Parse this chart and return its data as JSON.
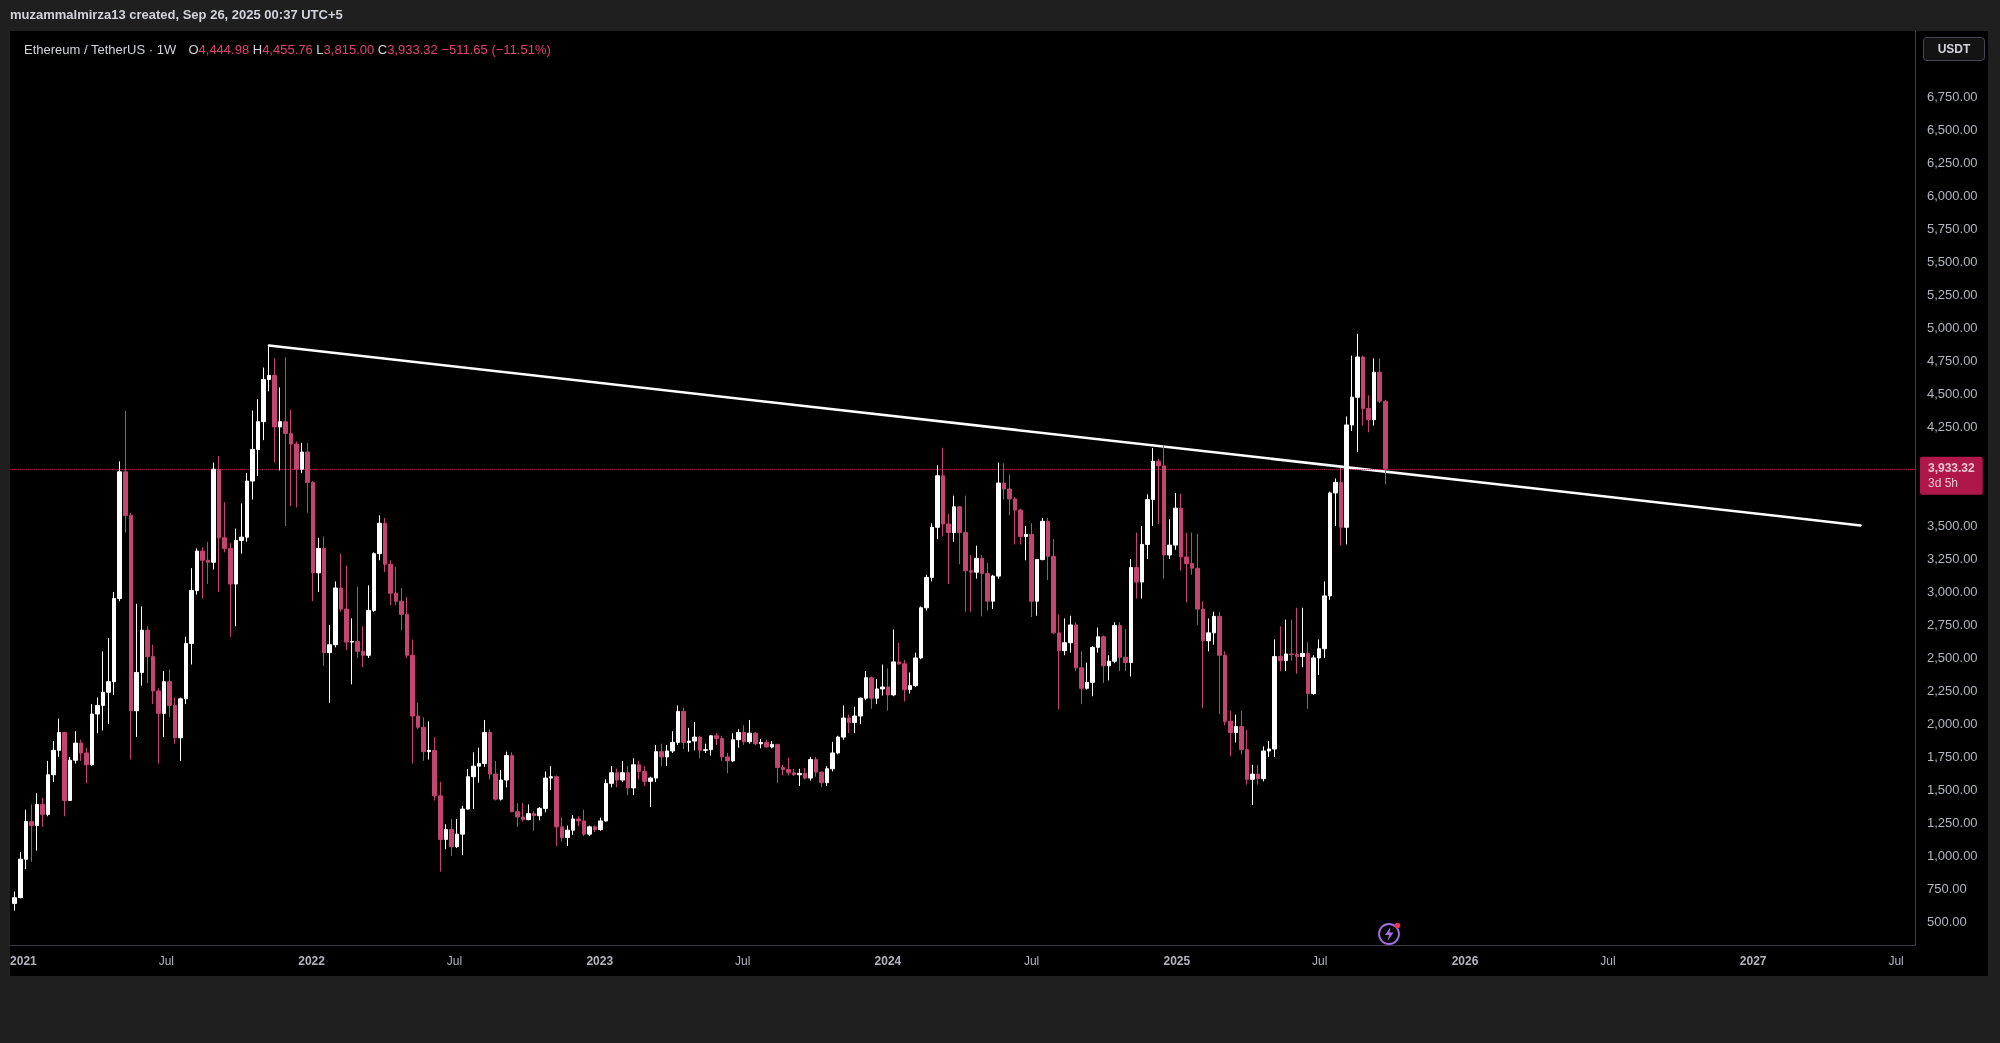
{
  "chart_data": {
    "type": "candlestick",
    "title": "Ethereum / TetherUS · 1W",
    "subtitle": "O4,444.98 H4,455.76 L3,815.00 C3,933.32 −511.65 (−11.51%)",
    "x": [
      "2020-12-21",
      "2020-12-28",
      "2021-01-04",
      "2021-01-11",
      "2021-01-18",
      "2021-01-25",
      "2021-02-01",
      "2021-02-08",
      "2021-02-15",
      "2021-02-22",
      "2021-03-01",
      "2021-03-08",
      "2021-03-15",
      "2021-03-22",
      "2021-03-29",
      "2021-04-05",
      "2021-04-12",
      "2021-04-19",
      "2021-04-26",
      "2021-05-03",
      "2021-05-10",
      "2021-05-17",
      "2021-05-24",
      "2021-05-31",
      "2021-06-07",
      "2021-06-14",
      "2021-06-21",
      "2021-06-28",
      "2021-07-05",
      "2021-07-12",
      "2021-07-19",
      "2021-07-26",
      "2021-08-02",
      "2021-08-09",
      "2021-08-16",
      "2021-08-23",
      "2021-08-30",
      "2021-09-06",
      "2021-09-13",
      "2021-09-20",
      "2021-09-27",
      "2021-10-04",
      "2021-10-11",
      "2021-10-18",
      "2021-10-25",
      "2021-11-01",
      "2021-11-08",
      "2021-11-15",
      "2021-11-22",
      "2021-11-29",
      "2021-12-06",
      "2021-12-13",
      "2021-12-20",
      "2021-12-27",
      "2022-01-03",
      "2022-01-10",
      "2022-01-17",
      "2022-01-24",
      "2022-01-31",
      "2022-02-07",
      "2022-02-14",
      "2022-02-21",
      "2022-02-28",
      "2022-03-07",
      "2022-03-14",
      "2022-03-21",
      "2022-03-28",
      "2022-04-04",
      "2022-04-11",
      "2022-04-18",
      "2022-04-25",
      "2022-05-02",
      "2022-05-09",
      "2022-05-16",
      "2022-05-23",
      "2022-05-30",
      "2022-06-06",
      "2022-06-13",
      "2022-06-20",
      "2022-06-27",
      "2022-07-04",
      "2022-07-11",
      "2022-07-18",
      "2022-07-25",
      "2022-08-01",
      "2022-08-08",
      "2022-08-15",
      "2022-08-22",
      "2022-08-29",
      "2022-09-05",
      "2022-09-12",
      "2022-09-19",
      "2022-09-26",
      "2022-10-03",
      "2022-10-10",
      "2022-10-17",
      "2022-10-24",
      "2022-10-31",
      "2022-11-07",
      "2022-11-14",
      "2022-11-21",
      "2022-11-28",
      "2022-12-05",
      "2022-12-12",
      "2022-12-19",
      "2022-12-26",
      "2023-01-02",
      "2023-01-09",
      "2023-01-16",
      "2023-01-23",
      "2023-01-30",
      "2023-02-06",
      "2023-02-13",
      "2023-02-20",
      "2023-02-27",
      "2023-03-06",
      "2023-03-13",
      "2023-03-20",
      "2023-03-27",
      "2023-04-03",
      "2023-04-10",
      "2023-04-17",
      "2023-04-24",
      "2023-05-01",
      "2023-05-08",
      "2023-05-15",
      "2023-05-22",
      "2023-05-29",
      "2023-06-05",
      "2023-06-12",
      "2023-06-19",
      "2023-06-26",
      "2023-07-03",
      "2023-07-10",
      "2023-07-17",
      "2023-07-24",
      "2023-07-31",
      "2023-08-07",
      "2023-08-14",
      "2023-08-21",
      "2023-08-28",
      "2023-09-04",
      "2023-09-11",
      "2023-09-18",
      "2023-09-25",
      "2023-10-02",
      "2023-10-09",
      "2023-10-16",
      "2023-10-23",
      "2023-10-30",
      "2023-11-06",
      "2023-11-13",
      "2023-11-20",
      "2023-11-27",
      "2023-12-04",
      "2023-12-11",
      "2023-12-18",
      "2023-12-25",
      "2024-01-01",
      "2024-01-08",
      "2024-01-15",
      "2024-01-22",
      "2024-01-29",
      "2024-02-05",
      "2024-02-12",
      "2024-02-19",
      "2024-02-26",
      "2024-03-04",
      "2024-03-11",
      "2024-03-18",
      "2024-03-25",
      "2024-04-01",
      "2024-04-08",
      "2024-04-15",
      "2024-04-22",
      "2024-04-29",
      "2024-05-06",
      "2024-05-13",
      "2024-05-20",
      "2024-05-27",
      "2024-06-03",
      "2024-06-10",
      "2024-06-17",
      "2024-06-24",
      "2024-07-01",
      "2024-07-08",
      "2024-07-15",
      "2024-07-22",
      "2024-07-29",
      "2024-08-05",
      "2024-08-12",
      "2024-08-19",
      "2024-08-26",
      "2024-09-02",
      "2024-09-09",
      "2024-09-16",
      "2024-09-23",
      "2024-09-30",
      "2024-10-07",
      "2024-10-14",
      "2024-10-21",
      "2024-10-28",
      "2024-11-04",
      "2024-11-11",
      "2024-11-18",
      "2024-11-25",
      "2024-12-02",
      "2024-12-09",
      "2024-12-16",
      "2024-12-23",
      "2024-12-30",
      "2025-01-06",
      "2025-01-13",
      "2025-01-20",
      "2025-01-27",
      "2025-02-03",
      "2025-02-10",
      "2025-02-17",
      "2025-02-24",
      "2025-03-03",
      "2025-03-10",
      "2025-03-17",
      "2025-03-24",
      "2025-03-31",
      "2025-04-07",
      "2025-04-14",
      "2025-04-21",
      "2025-04-28",
      "2025-05-05",
      "2025-05-12",
      "2025-05-19",
      "2025-05-26",
      "2025-06-02",
      "2025-06-09",
      "2025-06-16",
      "2025-06-23",
      "2025-06-30",
      "2025-07-07",
      "2025-07-14",
      "2025-07-21",
      "2025-07-28",
      "2025-08-04",
      "2025-08-11",
      "2025-08-18",
      "2025-08-25",
      "2025-09-01",
      "2025-09-08",
      "2025-09-15",
      "2025-09-22"
    ],
    "ohlc": [
      [
        640,
        730,
        585,
        683
      ],
      [
        683,
        1030,
        680,
        975
      ],
      [
        975,
        1350,
        900,
        1260
      ],
      [
        1260,
        1390,
        955,
        1230
      ],
      [
        1230,
        1475,
        1040,
        1390
      ],
      [
        1390,
        1440,
        1220,
        1315
      ],
      [
        1315,
        1720,
        1300,
        1615
      ],
      [
        1615,
        1870,
        1560,
        1800
      ],
      [
        1800,
        2040,
        1750,
        1935
      ],
      [
        1935,
        1940,
        1300,
        1420
      ],
      [
        1420,
        1750,
        1420,
        1725
      ],
      [
        1725,
        1945,
        1700,
        1855
      ],
      [
        1855,
        1880,
        1720,
        1780
      ],
      [
        1780,
        1820,
        1550,
        1690
      ],
      [
        1690,
        2150,
        1680,
        2075
      ],
      [
        2075,
        2200,
        1930,
        2140
      ],
      [
        2140,
        2550,
        1950,
        2240
      ],
      [
        2240,
        2650,
        2000,
        2320
      ],
      [
        2320,
        3000,
        2220,
        2950
      ],
      [
        2950,
        3990,
        2930,
        3910
      ],
      [
        3910,
        4372,
        3450,
        3580
      ],
      [
        3580,
        3600,
        1730,
        2100
      ],
      [
        2100,
        2910,
        1900,
        2390
      ],
      [
        2390,
        2890,
        2290,
        2710
      ],
      [
        2710,
        2740,
        2310,
        2510
      ],
      [
        2510,
        2600,
        2150,
        2250
      ],
      [
        2250,
        2270,
        1700,
        2080
      ],
      [
        2080,
        2400,
        1900,
        2320
      ],
      [
        2320,
        2410,
        2050,
        2140
      ],
      [
        2140,
        2200,
        1850,
        1895
      ],
      [
        1895,
        2200,
        1720,
        2190
      ],
      [
        2190,
        2660,
        2150,
        2610
      ],
      [
        2610,
        3180,
        2450,
        3010
      ],
      [
        3010,
        3330,
        2980,
        3310
      ],
      [
        3310,
        3340,
        2950,
        3240
      ],
      [
        3240,
        3380,
        3060,
        3225
      ],
      [
        3225,
        3980,
        3170,
        3930
      ],
      [
        3930,
        4030,
        3000,
        3410
      ],
      [
        3410,
        3680,
        3300,
        3330
      ],
      [
        3330,
        3370,
        2660,
        3060
      ],
      [
        3060,
        3480,
        2740,
        3390
      ],
      [
        3390,
        3670,
        3290,
        3415
      ],
      [
        3415,
        3900,
        3380,
        3840
      ],
      [
        3840,
        4375,
        3700,
        4080
      ],
      [
        4080,
        4460,
        3880,
        4290
      ],
      [
        4290,
        4700,
        4150,
        4610
      ],
      [
        4610,
        4868,
        4520,
        4640
      ],
      [
        4640,
        4770,
        3980,
        4250
      ],
      [
        4250,
        4550,
        3920,
        4290
      ],
      [
        4290,
        4778,
        3500,
        4200
      ],
      [
        4200,
        4380,
        3650,
        4120
      ],
      [
        4120,
        4140,
        3640,
        3930
      ],
      [
        3930,
        4130,
        3900,
        4060
      ],
      [
        4060,
        4130,
        3600,
        3830
      ],
      [
        3830,
        3840,
        2930,
        3145
      ],
      [
        3145,
        3410,
        3000,
        3330
      ],
      [
        3330,
        3420,
        2440,
        2540
      ],
      [
        2540,
        2750,
        2160,
        2600
      ],
      [
        2600,
        3080,
        2580,
        3030
      ],
      [
        3030,
        3290,
        2850,
        2870
      ],
      [
        2870,
        3200,
        2560,
        2620
      ],
      [
        2620,
        2800,
        2300,
        2625
      ],
      [
        2625,
        3040,
        2500,
        2550
      ],
      [
        2550,
        2740,
        2430,
        2520
      ],
      [
        2520,
        3050,
        2500,
        2860
      ],
      [
        2860,
        3300,
        2850,
        3290
      ],
      [
        3290,
        3580,
        3240,
        3520
      ],
      [
        3520,
        3560,
        3150,
        3210
      ],
      [
        3210,
        3240,
        2900,
        2990
      ],
      [
        2990,
        3190,
        2900,
        2930
      ],
      [
        2930,
        3030,
        2710,
        2830
      ],
      [
        2830,
        2960,
        2500,
        2520
      ],
      [
        2520,
        2640,
        1700,
        2060
      ],
      [
        2060,
        2160,
        1960,
        1975
      ],
      [
        1975,
        2050,
        1720,
        1790
      ],
      [
        1790,
        2020,
        1730,
        1800
      ],
      [
        1800,
        1900,
        1420,
        1455
      ],
      [
        1455,
        1560,
        880,
        1125
      ],
      [
        1125,
        1240,
        1050,
        1200
      ],
      [
        1200,
        1280,
        1000,
        1070
      ],
      [
        1070,
        1280,
        1060,
        1165
      ],
      [
        1165,
        1380,
        1005,
        1355
      ],
      [
        1355,
        1660,
        1350,
        1600
      ],
      [
        1600,
        1785,
        1355,
        1680
      ],
      [
        1680,
        1820,
        1555,
        1700
      ],
      [
        1700,
        2030,
        1675,
        1935
      ],
      [
        1935,
        1960,
        1580,
        1620
      ],
      [
        1620,
        1720,
        1420,
        1430
      ],
      [
        1430,
        1650,
        1420,
        1575
      ],
      [
        1575,
        1790,
        1520,
        1760
      ],
      [
        1760,
        1785,
        1330,
        1335
      ],
      [
        1335,
        1400,
        1220,
        1295
      ],
      [
        1295,
        1400,
        1260,
        1275
      ],
      [
        1275,
        1390,
        1270,
        1320
      ],
      [
        1320,
        1340,
        1190,
        1305
      ],
      [
        1305,
        1370,
        1270,
        1360
      ],
      [
        1360,
        1640,
        1330,
        1590
      ],
      [
        1590,
        1680,
        1500,
        1600
      ],
      [
        1600,
        1610,
        1075,
        1220
      ],
      [
        1220,
        1290,
        1110,
        1140
      ],
      [
        1140,
        1230,
        1075,
        1195
      ],
      [
        1195,
        1310,
        1160,
        1280
      ],
      [
        1280,
        1300,
        1225,
        1265
      ],
      [
        1265,
        1350,
        1150,
        1165
      ],
      [
        1165,
        1230,
        1150,
        1220
      ],
      [
        1220,
        1230,
        1180,
        1200
      ],
      [
        1200,
        1290,
        1190,
        1265
      ],
      [
        1265,
        1580,
        1260,
        1550
      ],
      [
        1550,
        1680,
        1520,
        1630
      ],
      [
        1630,
        1660,
        1520,
        1575
      ],
      [
        1575,
        1720,
        1560,
        1630
      ],
      [
        1630,
        1680,
        1460,
        1515
      ],
      [
        1515,
        1740,
        1460,
        1690
      ],
      [
        1690,
        1720,
        1580,
        1640
      ],
      [
        1640,
        1680,
        1530,
        1565
      ],
      [
        1565,
        1600,
        1370,
        1590
      ],
      [
        1590,
        1840,
        1560,
        1790
      ],
      [
        1790,
        1850,
        1680,
        1750
      ],
      [
        1750,
        1840,
        1680,
        1795
      ],
      [
        1795,
        1945,
        1780,
        1860
      ],
      [
        1860,
        2140,
        1840,
        2095
      ],
      [
        2095,
        2125,
        1810,
        1860
      ],
      [
        1860,
        1970,
        1790,
        1870
      ],
      [
        1870,
        2015,
        1800,
        1900
      ],
      [
        1900,
        1910,
        1740,
        1800
      ],
      [
        1800,
        1850,
        1780,
        1805
      ],
      [
        1805,
        1915,
        1760,
        1910
      ],
      [
        1910,
        1930,
        1840,
        1890
      ],
      [
        1890,
        1910,
        1720,
        1750
      ],
      [
        1750,
        1780,
        1625,
        1720
      ],
      [
        1720,
        1930,
        1710,
        1880
      ],
      [
        1880,
        1960,
        1820,
        1935
      ],
      [
        1935,
        1990,
        1840,
        1865
      ],
      [
        1865,
        2030,
        1850,
        1930
      ],
      [
        1930,
        1940,
        1840,
        1850
      ],
      [
        1850,
        1885,
        1815,
        1860
      ],
      [
        1860,
        1880,
        1820,
        1825
      ],
      [
        1825,
        1870,
        1815,
        1845
      ],
      [
        1845,
        1850,
        1550,
        1670
      ],
      [
        1670,
        1690,
        1610,
        1655
      ],
      [
        1655,
        1745,
        1610,
        1630
      ],
      [
        1630,
        1660,
        1605,
        1615
      ],
      [
        1615,
        1660,
        1530,
        1625
      ],
      [
        1625,
        1665,
        1580,
        1590
      ],
      [
        1590,
        1750,
        1570,
        1730
      ],
      [
        1730,
        1750,
        1600,
        1635
      ],
      [
        1635,
        1640,
        1520,
        1555
      ],
      [
        1555,
        1680,
        1530,
        1660
      ],
      [
        1660,
        1865,
        1640,
        1780
      ],
      [
        1780,
        1910,
        1770,
        1900
      ],
      [
        1900,
        2140,
        1880,
        2045
      ],
      [
        2045,
        2070,
        1930,
        2010
      ],
      [
        2010,
        2130,
        1930,
        2060
      ],
      [
        2060,
        2200,
        2000,
        2195
      ],
      [
        2195,
        2400,
        2180,
        2350
      ],
      [
        2350,
        2360,
        2115,
        2195
      ],
      [
        2195,
        2340,
        2150,
        2265
      ],
      [
        2265,
        2450,
        2215,
        2280
      ],
      [
        2280,
        2420,
        2100,
        2220
      ],
      [
        2220,
        2715,
        2210,
        2470
      ],
      [
        2470,
        2615,
        2450,
        2455
      ],
      [
        2455,
        2485,
        2170,
        2260
      ],
      [
        2260,
        2390,
        2230,
        2290
      ],
      [
        2290,
        2540,
        2280,
        2500
      ],
      [
        2500,
        2890,
        2490,
        2880
      ],
      [
        2880,
        3130,
        2860,
        3110
      ],
      [
        3110,
        3520,
        3080,
        3490
      ],
      [
        3490,
        3960,
        3400,
        3880
      ],
      [
        3880,
        4093,
        3420,
        3515
      ],
      [
        3515,
        3590,
        3060,
        3450
      ],
      [
        3450,
        3730,
        3380,
        3645
      ],
      [
        3645,
        3650,
        3210,
        3450
      ],
      [
        3450,
        3730,
        2850,
        3160
      ],
      [
        3160,
        3280,
        2850,
        3150
      ],
      [
        3150,
        3350,
        3100,
        3255
      ],
      [
        3255,
        3280,
        2815,
        3140
      ],
      [
        3140,
        3220,
        2860,
        2930
      ],
      [
        2930,
        3130,
        2870,
        3120
      ],
      [
        3120,
        3980,
        3100,
        3825
      ],
      [
        3825,
        3975,
        3700,
        3780
      ],
      [
        3780,
        3890,
        3580,
        3705
      ],
      [
        3705,
        3720,
        3360,
        3620
      ],
      [
        3620,
        3630,
        3360,
        3420
      ],
      [
        3420,
        3500,
        3240,
        3435
      ],
      [
        3435,
        3520,
        2810,
        2930
      ],
      [
        2930,
        3250,
        2820,
        3245
      ],
      [
        3245,
        3560,
        3240,
        3535
      ],
      [
        3535,
        3560,
        3090,
        3270
      ],
      [
        3270,
        3400,
        2680,
        2690
      ],
      [
        2690,
        2830,
        2110,
        2555
      ],
      [
        2555,
        2800,
        2520,
        2615
      ],
      [
        2615,
        2820,
        2540,
        2750
      ],
      [
        2750,
        2770,
        2400,
        2425
      ],
      [
        2425,
        2550,
        2150,
        2270
      ],
      [
        2270,
        2465,
        2260,
        2315
      ],
      [
        2315,
        2590,
        2210,
        2580
      ],
      [
        2580,
        2730,
        2540,
        2660
      ],
      [
        2660,
        2670,
        2310,
        2440
      ],
      [
        2440,
        2520,
        2330,
        2475
      ],
      [
        2475,
        2770,
        2460,
        2745
      ],
      [
        2745,
        2770,
        2400,
        2505
      ],
      [
        2505,
        2720,
        2400,
        2465
      ],
      [
        2465,
        3250,
        2360,
        3185
      ],
      [
        3185,
        3450,
        2950,
        3075
      ],
      [
        3075,
        3500,
        2950,
        3360
      ],
      [
        3360,
        3740,
        3250,
        3700
      ],
      [
        3700,
        4090,
        3500,
        3990
      ],
      [
        3990,
        4010,
        3515,
        3955
      ],
      [
        3955,
        4110,
        3100,
        3280
      ],
      [
        3280,
        3550,
        3250,
        3355
      ],
      [
        3355,
        3750,
        3320,
        3635
      ],
      [
        3635,
        3745,
        3160,
        3265
      ],
      [
        3265,
        3450,
        2920,
        3215
      ],
      [
        3215,
        3450,
        3130,
        3180
      ],
      [
        3180,
        3440,
        2750,
        2870
      ],
      [
        2870,
        2930,
        2120,
        2630
      ],
      [
        2630,
        2800,
        2550,
        2690
      ],
      [
        2690,
        2850,
        2600,
        2815
      ],
      [
        2815,
        2850,
        2075,
        2520
      ],
      [
        2520,
        2550,
        1990,
        2020
      ],
      [
        2020,
        2100,
        1755,
        1935
      ],
      [
        1935,
        2070,
        1860,
        1980
      ],
      [
        1980,
        2100,
        1770,
        1805
      ],
      [
        1805,
        1955,
        1540,
        1580
      ],
      [
        1580,
        1690,
        1385,
        1620
      ],
      [
        1620,
        1690,
        1540,
        1585
      ],
      [
        1585,
        1830,
        1565,
        1795
      ],
      [
        1795,
        1870,
        1750,
        1810
      ],
      [
        1810,
        2640,
        1750,
        2510
      ],
      [
        2510,
        2740,
        2400,
        2480
      ],
      [
        2480,
        2790,
        2400,
        2530
      ],
      [
        2530,
        2790,
        2480,
        2525
      ],
      [
        2525,
        2880,
        2380,
        2510
      ],
      [
        2510,
        2880,
        2430,
        2535
      ],
      [
        2535,
        2620,
        2115,
        2230
      ],
      [
        2230,
        2520,
        2220,
        2500
      ],
      [
        2500,
        2640,
        2370,
        2570
      ],
      [
        2570,
        3080,
        2500,
        2970
      ],
      [
        2970,
        3760,
        2940,
        3750
      ],
      [
        3750,
        3860,
        3500,
        3830
      ],
      [
        3830,
        3940,
        3350,
        3490
      ],
      [
        3490,
        4330,
        3360,
        4265
      ],
      [
        4265,
        4790,
        4220,
        4475
      ],
      [
        4475,
        4956,
        4060,
        4780
      ],
      [
        4780,
        4790,
        4260,
        4390
      ],
      [
        4390,
        4490,
        4210,
        4305
      ],
      [
        4305,
        4770,
        4260,
        4665
      ],
      [
        4665,
        4770,
        4430,
        4445
      ],
      [
        4444.98,
        4455.76,
        3815.0,
        3933.32
      ]
    ],
    "colors": [
      "#ffffff",
      "#ffffff",
      "#ffffff",
      "#c2466f",
      "#ffffff",
      "#c2466f",
      "#ffffff",
      "#ffffff",
      "#ffffff",
      "#c2466f",
      "#ffffff",
      "#ffffff",
      "#c2466f",
      "#c2466f",
      "#ffffff",
      "#ffffff",
      "#ffffff",
      "#ffffff",
      "#ffffff",
      "#ffffff",
      "#c2466f",
      "#c2466f",
      "#ffffff",
      "#ffffff",
      "#c2466f",
      "#c2466f",
      "#c2466f",
      "#ffffff",
      "#c2466f",
      "#c2466f",
      "#ffffff",
      "#ffffff",
      "#ffffff",
      "#ffffff",
      "#c2466f",
      "#c2466f",
      "#ffffff",
      "#c2466f",
      "#c2466f",
      "#c2466f",
      "#ffffff",
      "#ffffff",
      "#ffffff",
      "#ffffff",
      "#ffffff",
      "#ffffff",
      "#ffffff",
      "#c2466f",
      "#ffffff",
      "#c2466f",
      "#c2466f",
      "#c2466f",
      "#ffffff",
      "#c2466f",
      "#c2466f",
      "#ffffff",
      "#c2466f",
      "#ffffff",
      "#ffffff",
      "#c2466f",
      "#c2466f",
      "#ffffff",
      "#c2466f",
      "#c2466f",
      "#ffffff",
      "#ffffff",
      "#ffffff",
      "#c2466f",
      "#c2466f",
      "#c2466f",
      "#c2466f",
      "#c2466f",
      "#c2466f",
      "#c2466f",
      "#c2466f",
      "#ffffff",
      "#c2466f",
      "#c2466f",
      "#ffffff",
      "#c2466f",
      "#ffffff",
      "#ffffff",
      "#ffffff",
      "#ffffff",
      "#ffffff",
      "#ffffff",
      "#c2466f",
      "#c2466f",
      "#ffffff",
      "#ffffff",
      "#c2466f",
      "#c2466f",
      "#c2466f",
      "#ffffff",
      "#c2466f",
      "#ffffff",
      "#ffffff",
      "#ffffff",
      "#c2466f",
      "#c2466f",
      "#ffffff",
      "#ffffff",
      "#c2466f",
      "#c2466f",
      "#ffffff",
      "#c2466f",
      "#ffffff",
      "#ffffff",
      "#ffffff",
      "#c2466f",
      "#ffffff",
      "#c2466f",
      "#ffffff",
      "#c2466f",
      "#c2466f",
      "#ffffff",
      "#ffffff",
      "#c2466f",
      "#ffffff",
      "#ffffff",
      "#ffffff",
      "#c2466f",
      "#ffffff",
      "#ffffff",
      "#c2466f",
      "#ffffff",
      "#ffffff",
      "#c2466f",
      "#c2466f",
      "#c2466f",
      "#ffffff",
      "#ffffff",
      "#c2466f",
      "#ffffff",
      "#c2466f",
      "#ffffff",
      "#c2466f",
      "#ffffff",
      "#c2466f",
      "#c2466f",
      "#c2466f",
      "#c2466f",
      "#ffffff",
      "#c2466f",
      "#ffffff",
      "#c2466f",
      "#c2466f",
      "#ffffff",
      "#ffffff",
      "#ffffff",
      "#ffffff",
      "#c2466f",
      "#ffffff",
      "#ffffff",
      "#ffffff",
      "#c2466f",
      "#ffffff",
      "#ffffff",
      "#c2466f",
      "#ffffff",
      "#c2466f",
      "#c2466f",
      "#ffffff",
      "#ffffff",
      "#ffffff",
      "#ffffff",
      "#ffffff",
      "#ffffff",
      "#c2466f",
      "#c2466f",
      "#ffffff",
      "#c2466f",
      "#c2466f",
      "#c2466f",
      "#ffffff",
      "#c2466f",
      "#c2466f",
      "#ffffff",
      "#ffffff",
      "#c2466f",
      "#c2466f",
      "#c2466f",
      "#c2466f",
      "#ffffff",
      "#c2466f",
      "#ffffff",
      "#ffffff",
      "#c2466f",
      "#c2466f",
      "#c2466f",
      "#ffffff",
      "#ffffff",
      "#c2466f",
      "#c2466f",
      "#ffffff",
      "#ffffff",
      "#ffffff",
      "#c2466f",
      "#ffffff",
      "#ffffff",
      "#c2466f",
      "#c2466f",
      "#ffffff",
      "#c2466f",
      "#ffffff",
      "#ffffff",
      "#ffffff",
      "#c2466f",
      "#c2466f",
      "#ffffff",
      "#ffffff",
      "#c2466f",
      "#c2466f",
      "#c2466f",
      "#c2466f",
      "#c2466f",
      "#ffffff",
      "#ffffff",
      "#c2466f",
      "#c2466f",
      "#c2466f",
      "#ffffff",
      "#c2466f",
      "#c2466f",
      "#ffffff",
      "#c2466f",
      "#ffffff",
      "#ffffff",
      "#ffffff",
      "#c2466f",
      "#ffffff",
      "#c2466f",
      "#c2466f",
      "#ffffff",
      "#c2466f",
      "#ffffff",
      "#ffffff",
      "#ffffff",
      "#ffffff",
      "#ffffff",
      "#c2466f",
      "#ffffff",
      "#ffffff",
      "#ffffff",
      "#c2466f",
      "#c2466f",
      "#ffffff",
      "#c2466f",
      "#c2466f"
    ],
    "series": [
      {
        "type": "line",
        "color": "#ffffff",
        "x": [
          "2021-11-08",
          "2027-05-17"
        ],
        "values": [
          4868,
          3504
        ]
      }
    ],
    "marker": "none",
    "xlim": [
      "2020-12-15",
      "2027-07-25"
    ],
    "xticks": [
      {
        "value": "2021-01-01",
        "label": "2021"
      },
      {
        "value": "2021-07-01",
        "label": "Jul"
      },
      {
        "value": "2022-01-01",
        "label": "2022"
      },
      {
        "value": "2022-07-01",
        "label": "Jul"
      },
      {
        "value": "2023-01-01",
        "label": "2023"
      },
      {
        "value": "2023-07-01",
        "label": "Jul"
      },
      {
        "value": "2024-01-01",
        "label": "2024"
      },
      {
        "value": "2024-07-01",
        "label": "Jul"
      },
      {
        "value": "2025-01-01",
        "label": "2025"
      },
      {
        "value": "2025-07-01",
        "label": "Jul"
      },
      {
        "value": "2026-01-01",
        "label": "2026"
      },
      {
        "value": "2026-07-01",
        "label": "Jul"
      },
      {
        "value": "2027-01-01",
        "label": "2027"
      },
      {
        "value": "2027-07-01",
        "label": "Jul"
      }
    ],
    "ylim": [
      325,
      7250
    ],
    "yticks": [
      {
        "value": 500,
        "label": "500.00"
      },
      {
        "value": 750,
        "label": "750.00"
      },
      {
        "value": 1000,
        "label": "1,000.00"
      },
      {
        "value": 1250,
        "label": "1,250.00"
      },
      {
        "value": 1500,
        "label": "1,500.00"
      },
      {
        "value": 1750,
        "label": "1,750.00"
      },
      {
        "value": 2000,
        "label": "2,000.00"
      },
      {
        "value": 2250,
        "label": "2,250.00"
      },
      {
        "value": 2500,
        "label": "2,500.00"
      },
      {
        "value": 2750,
        "label": "2,750.00"
      },
      {
        "value": 3000,
        "label": "3,000.00"
      },
      {
        "value": 3250,
        "label": "3,250.00"
      },
      {
        "value": 3500,
        "label": "3,500.00"
      },
      {
        "value": 4250,
        "label": "4,250.00"
      },
      {
        "value": 4500,
        "label": "4,500.00"
      },
      {
        "value": 4750,
        "label": "4,750.00"
      },
      {
        "value": 5000,
        "label": "5,000.00"
      },
      {
        "value": 5250,
        "label": "5,250.00"
      },
      {
        "value": 5500,
        "label": "5,500.00"
      },
      {
        "value": 5750,
        "label": "5,750.00"
      },
      {
        "value": 6000,
        "label": "6,000.00"
      },
      {
        "value": 6250,
        "label": "6,250.00"
      },
      {
        "value": 6500,
        "label": "6,500.00"
      },
      {
        "value": 6750,
        "label": "6,750.00"
      }
    ],
    "ref_lines": [
      {
        "axis": "y",
        "value": 3933.32,
        "label": "3,933.32",
        "color": "#e91e63",
        "line_style": "dotted"
      }
    ],
    "annotations": [
      "muzammalmirza13 created, Sep 26, 2025 00:37 UTC+5",
      "3d 5h",
      "USDT"
    ],
    "grid": false
  }
}
